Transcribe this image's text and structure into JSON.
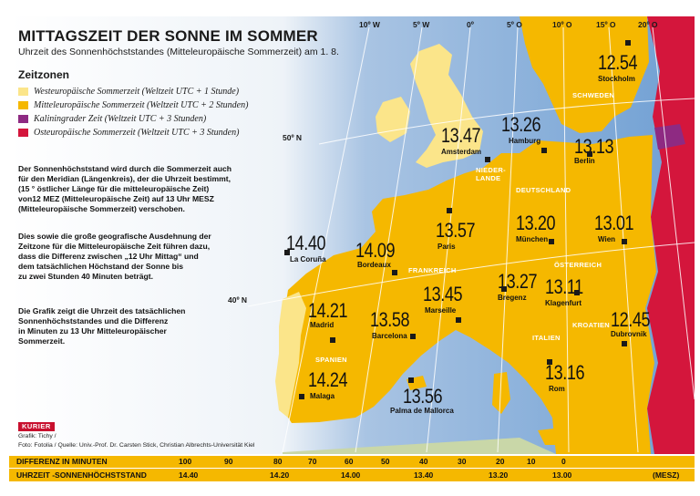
{
  "title": "MITTAGSZEIT DER SONNE IM SOMMER",
  "subtitle": "Uhrzeit des Sonnenhöchststandes (Mitteleuropäische Sommerzeit) am 1. 8.",
  "legend": {
    "heading": "Zeitzonen",
    "items": [
      {
        "label": "Westeuropäische Sommerzeit (Weltzeit UTC + 1 Stunde)",
        "color": "#fbe58a"
      },
      {
        "label": "Mitteleuropäische Sommerzeit (Weltzeit UTC + 2 Stunden)",
        "color": "#f5b800"
      },
      {
        "label": "Kaliningrader Zeit (Weltzeit UTC + 3 Stunden)",
        "color": "#8e2a82"
      },
      {
        "label": "Osteuropäische Sommerzeit (Weltzeit UTC + 3 Stunden)",
        "color": "#d4163c"
      }
    ]
  },
  "paragraphs": [
    "Der Sonnenhöchststand wird durch die Sommerzeit auch\nfür den Meridian (Längenkreis), der die Uhrzeit bestimmt,\n(15 ° östlicher Länge für die mitteleuropäische Zeit)\nvon12 MEZ (Mitteleuropäische Zeit) auf 13 Uhr MESZ\n(Mitteleuropäische Sommerzeit) verschoben.",
    "Dies sowie die große geografische Ausdehnung der\nZeitzone für die Mitteleuropäische Zeit führen dazu,\ndass die Differenz zwischen „12 Uhr Mittag“ und\ndem tatsächlichen Höchstand der Sonne bis\nzu zwei Stunden 40 Minuten beträgt.",
    "Die Grafik zeigt die Uhrzeit des tatsächlichen\nSonnenhöchststandes und die Differenz\nin Minuten zu 13 Uhr Mitteleuropäischer\nSommerzeit."
  ],
  "longitudes": [
    "10º W",
    "5º W",
    "0º",
    "5º O",
    "10º O",
    "15º O",
    "20º O"
  ],
  "latitudes": [
    "50º N",
    "40º N"
  ],
  "cities": [
    {
      "time": "12.54",
      "name": "Stockholm"
    },
    {
      "time": "13.26",
      "name": "Hamburg"
    },
    {
      "time": "13.47",
      "name": "Amsterdam"
    },
    {
      "time": "13.13",
      "name": "Berlin"
    },
    {
      "time": "13.57",
      "name": "Paris"
    },
    {
      "time": "13.20",
      "name": "München"
    },
    {
      "time": "13.01",
      "name": "Wien"
    },
    {
      "time": "14.40",
      "name": "La Coruña"
    },
    {
      "time": "14.09",
      "name": "Bordeaux"
    },
    {
      "time": "13.45",
      "name": "Marseille"
    },
    {
      "time": "13.27",
      "name": "Bregenz"
    },
    {
      "time": "13.11",
      "name": "Klagenfurt"
    },
    {
      "time": "12.45",
      "name": "Dubrovnik"
    },
    {
      "time": "14.21",
      "name": "Madrid"
    },
    {
      "time": "13.58",
      "name": "Barcelona"
    },
    {
      "time": "14.24",
      "name": "Malaga"
    },
    {
      "time": "13.56",
      "name": "Palma de Mallorca"
    },
    {
      "time": "13.16",
      "name": "Rom"
    }
  ],
  "countries": [
    "SCHWEDEN",
    "NIEDER-\nLANDE",
    "DEUTSCHLAND",
    "FRANKREICH",
    "ÖSTERREICH",
    "KROATIEN",
    "ITALIEN",
    "SPANIEN"
  ],
  "logo": "KURIER",
  "credits": [
    "Grafik: Tichy /",
    "Foto: Fotolia / Quelle: Univ.-Prof. Dr. Carsten Stick, Christian Albrechts-Universität Kiel"
  ],
  "scale": {
    "diff_label": "DIFFERENZ IN MINUTEN",
    "diff_values": [
      "100",
      "90",
      "80",
      "70",
      "60",
      "50",
      "40",
      "30",
      "20",
      "10",
      "0"
    ],
    "time_label": "UHRZEIT -SONNENHÖCHSTSTAND",
    "time_values": [
      "14.40",
      "14.20",
      "14.00",
      "13.40",
      "13.20",
      "13.00"
    ],
    "unit": "(MESZ)"
  },
  "colors": {
    "sea": "#6f9fd3",
    "west": "#fbe58a",
    "central": "#f5b800",
    "kaliningrad": "#8e2a82",
    "east": "#d4163c",
    "other": "#c9d7a8"
  }
}
